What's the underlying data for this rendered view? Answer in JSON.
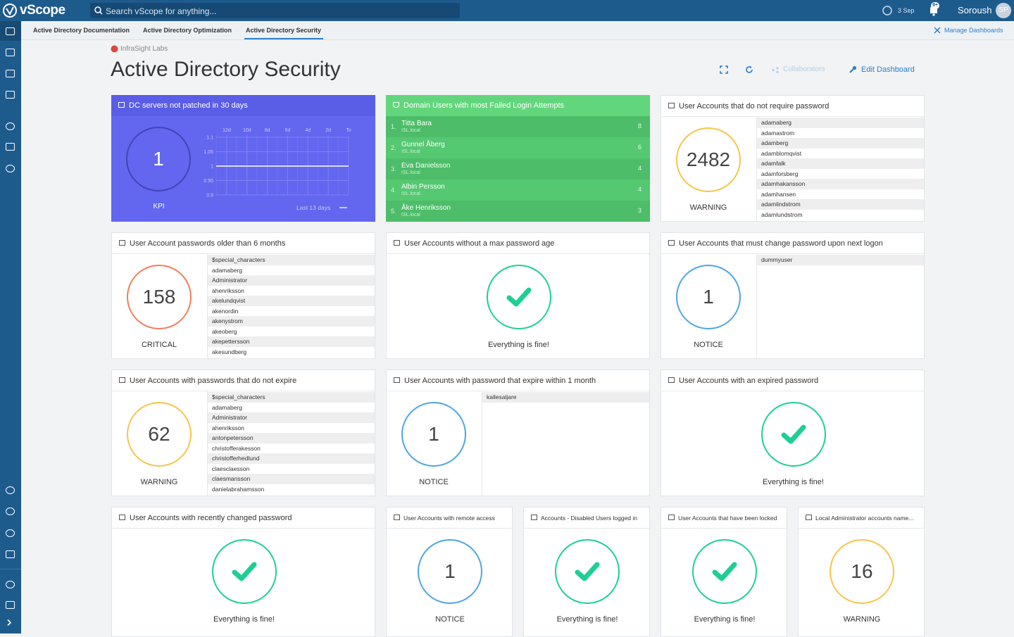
{
  "app": {
    "logo": "vScope",
    "search_placeholder": "Search vScope for anything...",
    "date": "3 Sep",
    "notifications": "9+",
    "user": "Soroush",
    "avatar": "SP"
  },
  "tabs": [
    {
      "label": "Active Directory Documentation",
      "active": false
    },
    {
      "label": "Active Directory Optimization",
      "active": false
    },
    {
      "label": "Active Directory Security",
      "active": true
    }
  ],
  "manage": "Manage Dashboards",
  "breadcrumb": "InfraSight Labs",
  "title": "Active Directory Security",
  "actions": [
    "Collaborators",
    "Edit Dashboard"
  ],
  "widgets": [
    {
      "title": "DC servers not patched in 30 days",
      "kind": "kpi",
      "value": "1",
      "status": "KPI",
      "chart": {
        "xticks": [
          "12d",
          "10d",
          "8d",
          "6d",
          "4d",
          "2d",
          "To"
        ],
        "ylim": [
          0.9,
          1.1
        ],
        "yticks": [
          1.1,
          1.05,
          1,
          0.95,
          0.9
        ],
        "values": [
          1,
          1,
          1,
          1,
          1,
          1,
          1,
          1,
          1,
          1,
          1,
          1,
          1
        ],
        "caption": "Last 13 days"
      }
    },
    {
      "title": "Domain Users with most Failed Login Attempts",
      "kind": "ranking",
      "rows": [
        {
          "rank": "1.",
          "name": "Titta Bara",
          "domain": "ISL.local",
          "count": "8"
        },
        {
          "rank": "2.",
          "name": "Gunnel Åberg",
          "domain": "ISL.local",
          "count": "6"
        },
        {
          "rank": "3.",
          "name": "Eva Danielsson",
          "domain": "ISL.local",
          "count": "4"
        },
        {
          "rank": "4.",
          "name": "Albin Persson",
          "domain": "ISL.local",
          "count": "4"
        },
        {
          "rank": "5.",
          "name": "Åke Henriksson",
          "domain": "ISL.local",
          "count": "3"
        }
      ]
    },
    {
      "title": "User Accounts that do not require password",
      "kind": "count",
      "value": "2482",
      "status": "WARNING",
      "color": "#f6c54a",
      "list": [
        "adamaberg",
        "adamastrom",
        "adamberg",
        "adamblomqvist",
        "adamfalk",
        "adamforsberg",
        "adamhakansson",
        "adamhansen",
        "adamlindstrom",
        "adamlundstrom"
      ]
    },
    {
      "title": "User Account passwords older than 6 months",
      "kind": "count",
      "value": "158",
      "status": "CRITICAL",
      "color": "#f27d5c",
      "list": [
        "$special_characters",
        "adamaberg",
        "Administrator",
        "ahenriksson",
        "akelundqvist",
        "akenordin",
        "akenystrom",
        "akeoberg",
        "akepettersson",
        "akesundberg"
      ]
    },
    {
      "title": "User Accounts without a max password age",
      "kind": "fine",
      "status": "Everything is fine!",
      "color": "#1ecf94"
    },
    {
      "title": "User Accounts that must change password upon next logon",
      "kind": "count",
      "value": "1",
      "status": "NOTICE",
      "color": "#4ea5e2",
      "list": [
        "dummyuser"
      ]
    },
    {
      "title": "User Accounts with passwords that do not expire",
      "kind": "count",
      "value": "62",
      "status": "WARNING",
      "color": "#f6c54a",
      "list": [
        "$special_characters",
        "adamaberg",
        "Administrator",
        "ahenriksson",
        "antonpetersson",
        "christofferakesson",
        "christofferhedlund",
        "claesclaesson",
        "claesmansson",
        "danielabrahamsson"
      ]
    },
    {
      "title": "User Accounts with password that expire within 1 month",
      "kind": "count",
      "value": "1",
      "status": "NOTICE",
      "color": "#4ea5e2",
      "list": [
        "kallesaljare"
      ]
    },
    {
      "title": "User Accounts with an expired password",
      "kind": "fine",
      "status": "Everything is fine!",
      "color": "#1ecf94"
    },
    {
      "title": "User Accounts with recently changed password",
      "kind": "fine",
      "status": "Everything is fine!",
      "color": "#1ecf94"
    },
    {
      "title": "User Accounts with remote access",
      "kind": "count",
      "value": "1",
      "status": "NOTICE",
      "color": "#4ea5e2"
    },
    {
      "title": "Accounts - Disabled Users logged in",
      "kind": "fine",
      "status": "Everything is fine!",
      "color": "#1ecf94"
    },
    {
      "title": "User Accounts that have been locked",
      "kind": "fine",
      "status": "Everything is fine!",
      "color": "#1ecf94"
    },
    {
      "title": "Local Administrator accounts name...",
      "kind": "count",
      "value": "16",
      "status": "WARNING",
      "color": "#f6c54a"
    }
  ]
}
